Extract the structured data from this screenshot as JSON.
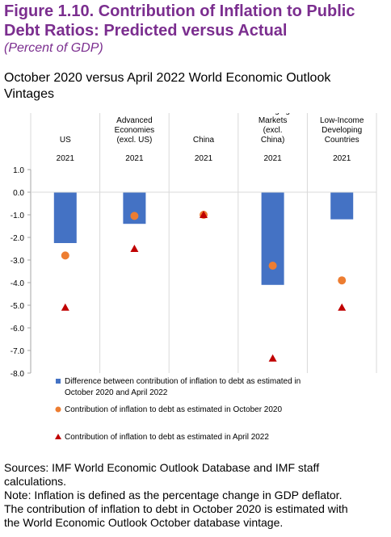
{
  "figure": {
    "title": "Figure 1.10. Contribution of Inflation to Public Debt Ratios: Predicted versus Actual",
    "units": "(Percent of GDP)",
    "subtitle": "October 2020 versus April 2022 World Economic Outlook Vintages"
  },
  "colors": {
    "title": "#7b2e8f",
    "bar": "#4472c4",
    "circle": "#ed7d31",
    "triangle": "#c00000",
    "gridline": "#d9d9d9"
  },
  "chart_data": {
    "type": "bar",
    "categories": [
      {
        "label": "US",
        "year": "2021"
      },
      {
        "label": "Advanced Economies (excl. US)",
        "year": "2021"
      },
      {
        "label": "China",
        "year": "2021"
      },
      {
        "label": "Emerging Markets (excl. China)",
        "year": "2021"
      },
      {
        "label": "Low-Income Developing Countries",
        "year": "2021"
      }
    ],
    "ylim": [
      -8.0,
      1.0
    ],
    "yticks": [
      "1.0",
      "0.0",
      "-1.0",
      "-2.0",
      "-3.0",
      "-4.0",
      "-5.0",
      "-6.0",
      "-7.0",
      "-8.0"
    ],
    "grid": true,
    "legend_position": "bottom",
    "series": [
      {
        "name": "Difference between contribution of inflation to debt as estimated in October 2020 and April 2022",
        "legend_lines": [
          "Difference between contribution of inflation to debt as estimated in",
          "October 2020 and April 2022"
        ],
        "marker": "bar",
        "values": [
          -2.25,
          -1.4,
          0.0,
          -4.1,
          -1.2
        ]
      },
      {
        "name": "Contribution of inflation to debt as estimated in October 2020",
        "legend_lines": [
          "Contribution of inflation to debt as estimated in October 2020"
        ],
        "marker": "circle",
        "values": [
          -2.8,
          -1.05,
          -1.0,
          -3.25,
          -3.9
        ]
      },
      {
        "name": "Contribution of inflation to debt as estimated in April 2022",
        "legend_lines": [
          "Contribution of inflation to debt as estimated in April 2022"
        ],
        "marker": "triangle",
        "values": [
          -5.1,
          -2.5,
          -1.0,
          -7.35,
          -5.1
        ]
      }
    ]
  },
  "notes": {
    "sources": [
      "Sources: IMF World Economic Outlook Database and IMF staff",
      "calculations."
    ],
    "note": [
      "Note: Inflation is defined as the percentage change in GDP deflator.",
      "The contribution of inflation to debt in October 2020 is estimated with",
      "the World Economic Outlook October database vintage."
    ]
  }
}
